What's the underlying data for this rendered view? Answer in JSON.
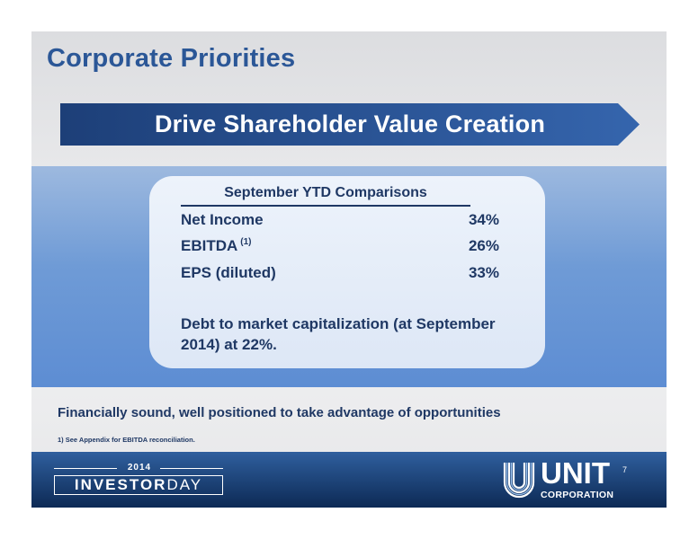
{
  "slide": {
    "title": "Corporate Priorities",
    "banner": "Drive Shareholder Value Creation",
    "card": {
      "header": "September YTD Comparisons",
      "rows": [
        {
          "label": "Net Income",
          "superscript": "",
          "value": "34%"
        },
        {
          "label": "EBITDA",
          "superscript": "(1)",
          "value": "26%"
        },
        {
          "label": "EPS (diluted)",
          "superscript": "",
          "value": "33%"
        }
      ],
      "debt_note": "Debt to market capitalization (at September 2014) at 22%."
    },
    "tagline": "Financially sound, well positioned to take advantage of opportunities",
    "footnote": "1) See Appendix for EBITDA reconciliation.",
    "footer": {
      "event_year": "2014",
      "event_word_bold": "INVESTOR",
      "event_word_light": "DAY",
      "company_name": "UNIT",
      "company_sub": "CORPORATION"
    },
    "page_number": "7"
  },
  "colors": {
    "title_blue": "#2b5797",
    "banner_blue": "#2a5394",
    "band_blue": "#6f9bd6",
    "text_navy": "#1f3864",
    "footer_navy": "#0d2a55"
  }
}
